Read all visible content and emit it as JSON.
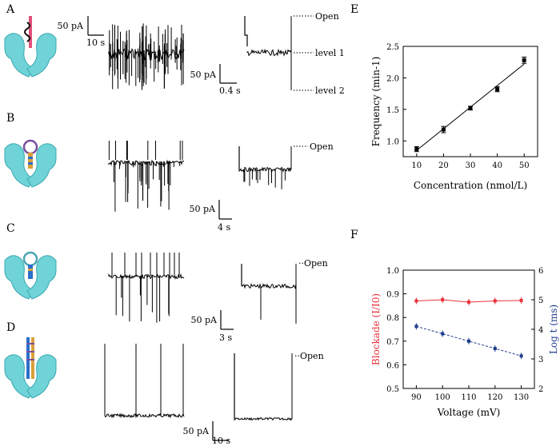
{
  "panels": {
    "A": {
      "label": "A",
      "scale_left": {
        "current": "50 pA",
        "time": "10 s"
      },
      "scale_right": {
        "current": "50 pA",
        "time": "0.4 s"
      },
      "levels": {
        "open": "Open",
        "level1": "level 1",
        "level2": "level 2"
      }
    },
    "B": {
      "label": "B",
      "scale": {
        "current": "50 pA",
        "time": "4 s"
      },
      "levels": {
        "open": "Open"
      }
    },
    "C": {
      "label": "C",
      "scale": {
        "current": "50 pA",
        "time": "3 s"
      },
      "levels": {
        "open": "Open"
      }
    },
    "D": {
      "label": "D",
      "scale": {
        "current": "50 pA",
        "time": "10 s"
      },
      "levels": {
        "open": "Open"
      }
    }
  },
  "chart_data": [
    {
      "panel": "E",
      "type": "scatter",
      "title": "",
      "xlabel": "Concentration (nmol/L)",
      "ylabel": "Frequency (min-1)",
      "xlim": [
        5,
        55
      ],
      "ylim": [
        0.75,
        2.5
      ],
      "xticks": [
        10,
        20,
        30,
        40,
        50
      ],
      "yticks": [
        1.0,
        1.5,
        2.0,
        2.5
      ],
      "x": [
        10,
        20,
        30,
        40,
        50
      ],
      "y": [
        0.87,
        1.18,
        1.52,
        1.82,
        2.28
      ],
      "yerr": [
        0.04,
        0.05,
        0.03,
        0.04,
        0.05
      ],
      "fit_line": {
        "x": [
          10,
          50
        ],
        "y": [
          0.85,
          2.22
        ]
      },
      "grid": false
    },
    {
      "panel": "F",
      "type": "line",
      "title": "",
      "xlabel": "Voltage (mV)",
      "ylabel_left": "Blockade (I/I0)",
      "ylabel_right": "Log t (ms)",
      "xlim": [
        85,
        135
      ],
      "ylim_left": [
        0.5,
        1.0
      ],
      "ylim_right": [
        2,
        6
      ],
      "xticks": [
        90,
        100,
        110,
        120,
        130
      ],
      "yticks_left": [
        0.5,
        0.6,
        0.7,
        0.8,
        0.9,
        1.0
      ],
      "yticks_right": [
        2,
        3,
        4,
        5,
        6
      ],
      "x": [
        90,
        100,
        110,
        120,
        130
      ],
      "series": [
        {
          "name": "Blockade",
          "axis": "left",
          "color": "#e8323c",
          "values": [
            0.87,
            0.875,
            0.865,
            0.87,
            0.872
          ]
        },
        {
          "name": "Log t",
          "axis": "right",
          "color": "#1f3c8c",
          "values": [
            4.1,
            3.85,
            3.6,
            3.35,
            3.1
          ]
        }
      ],
      "grid": false
    }
  ],
  "colors": {
    "protein": "#6fd3d8",
    "blue": "#1f3c8c",
    "red": "#e8323c"
  }
}
